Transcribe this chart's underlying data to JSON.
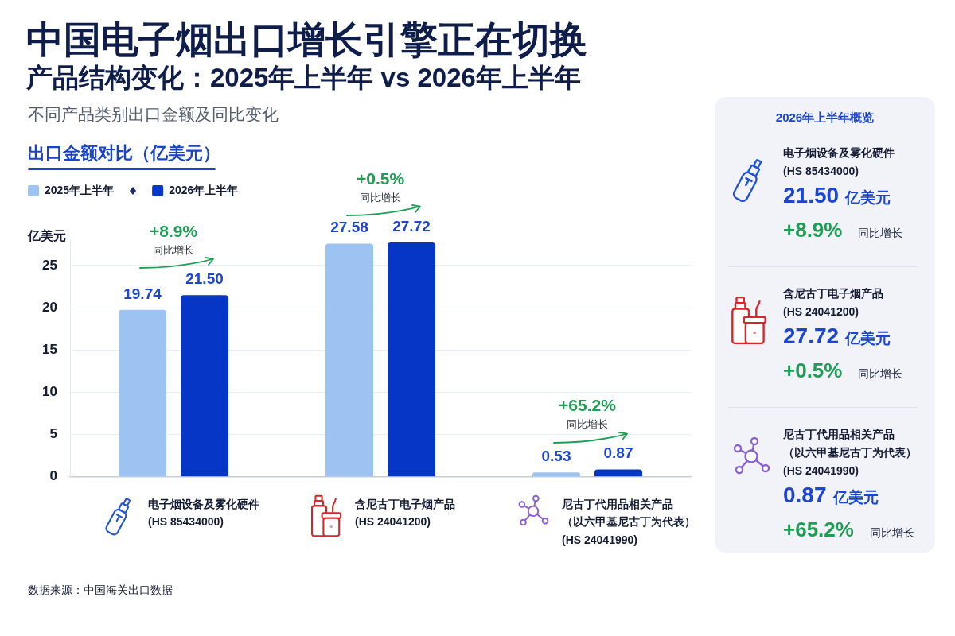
{
  "chart_data": [
    {
      "type": "bar",
      "title": "中国电子烟出口增长引擎正在切换",
      "subtitle": "产品结构变化：2025年上半年 vs 2026年上半年",
      "categories": [
        "电子烟设备及雾化硬件\n(HS 85434000)",
        "含尼古丁电子烟产品\n(HS 24041200)",
        "尼古丁代用品相关产品（以六甲基尼古丁为代表）\n(HS 24041990)"
      ],
      "series": [
        {
          "name": "2025年上半年",
          "color": "#9dc3f3",
          "values": [
            19.74,
            27.58,
            0.53
          ],
          "value_labels": [
            "19.74",
            "27.58",
            "0.53"
          ]
        },
        {
          "name": "2026年上半年",
          "color": "#0536c5",
          "values": [
            21.5,
            27.72,
            0.87
          ],
          "value_labels": [
            "21.50",
            "27.72",
            "0.87"
          ]
        }
      ],
      "ylabel": "亿美元",
      "ylim": [
        0,
        28
      ],
      "yticks": [
        0,
        5,
        10,
        15,
        20,
        25
      ],
      "grid": "y",
      "legend": "top left",
      "annotations": [
        "不同产品类别出口金额及同比变化",
        "出口金额对比（亿美元）",
        "+8.9%",
        "同比增长",
        "+0.5%",
        "同比增长",
        "+65.2%",
        "同比增长",
        "数据来源：中国海关出口数据"
      ]
    },
    {
      "type": "other",
      "title": "2026年上半年概览",
      "annotations": [
        "电子烟设备及雾化硬件",
        "(HS 85434000)",
        "21.50",
        "亿美元",
        "+8.9%",
        "同比增长",
        "含尼古丁电子烟产品",
        "(HS 24041200)",
        "27.72",
        "亿美元",
        "+0.5%",
        "同比增长",
        "尼古丁代用品相关产品（以六甲基尼古丁为代表）",
        "(HS 24041990)",
        "0.87",
        "亿美元",
        "+65.2%",
        "同比增长"
      ]
    }
  ]
}
